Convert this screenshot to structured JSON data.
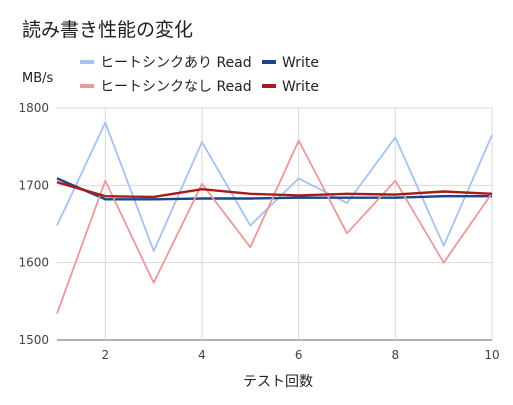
{
  "chart_data": {
    "type": "line",
    "title": "読み書き性能の変化",
    "xlabel": "テスト回数",
    "ylabel": "MB/s",
    "x": [
      1,
      2,
      3,
      4,
      5,
      6,
      7,
      8,
      9,
      10
    ],
    "xlim": [
      1,
      10
    ],
    "ylim": [
      1500,
      1800
    ],
    "xticks": [
      2,
      4,
      6,
      8,
      10
    ],
    "yticks": [
      1500,
      1600,
      1700,
      1800
    ],
    "grid": true,
    "legend": "top",
    "series": [
      {
        "name": "ヒートシンクあり Read",
        "color": "#a4c2f4",
        "values": [
          1648,
          1781,
          1615,
          1756,
          1648,
          1709,
          1677,
          1762,
          1622,
          1765
        ]
      },
      {
        "name": "Write",
        "color": "#1c4587",
        "values": [
          1709,
          1682,
          1682,
          1683,
          1683,
          1684,
          1684,
          1684,
          1686,
          1686
        ]
      },
      {
        "name": "ヒートシンクなし Read",
        "color": "#ea9999",
        "values": [
          1534,
          1706,
          1574,
          1702,
          1620,
          1758,
          1638,
          1706,
          1600,
          1690
        ]
      },
      {
        "name": "Write",
        "color": "#a61c1c",
        "values": [
          1704,
          1686,
          1685,
          1695,
          1689,
          1687,
          1689,
          1688,
          1692,
          1689
        ]
      }
    ]
  }
}
